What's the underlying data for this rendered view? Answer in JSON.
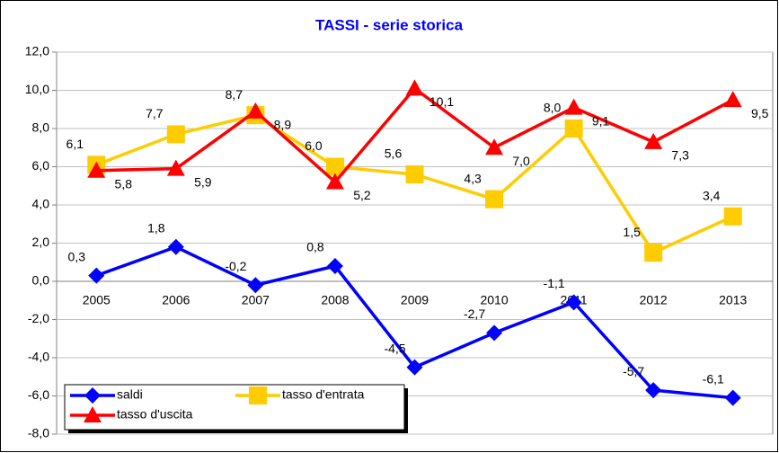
{
  "chart_data": {
    "type": "line",
    "title": "TASSI - serie storica",
    "categories": [
      "2005",
      "2006",
      "2007",
      "2008",
      "2009",
      "2010",
      "2011",
      "2012",
      "2013"
    ],
    "series": [
      {
        "name": "saldi",
        "color": "#0000ff",
        "marker": "diamond",
        "values": [
          0.3,
          1.8,
          -0.2,
          0.8,
          -4.5,
          -2.7,
          -1.1,
          -5.7,
          -6.1
        ],
        "value_labels": [
          "0,3",
          "1,8",
          "-0,2",
          "0,8",
          "-4,5",
          "-2,7",
          "-1,1",
          "-5,7",
          "-6,1"
        ]
      },
      {
        "name": "tasso d'entrata",
        "color": "#ffcc00",
        "marker": "square",
        "values": [
          6.1,
          7.7,
          8.7,
          6.0,
          5.6,
          4.3,
          8.0,
          1.5,
          3.4
        ],
        "value_labels": [
          "6,1",
          "7,7",
          "8,7",
          "6,0",
          "5,6",
          "4,3",
          "8,0",
          "1,5",
          "3,4"
        ]
      },
      {
        "name": "tasso d'uscita",
        "color": "#ff0000",
        "marker": "triangle",
        "values": [
          5.8,
          5.9,
          8.9,
          5.2,
          10.1,
          7.0,
          9.1,
          7.3,
          9.5
        ],
        "value_labels": [
          "5,8",
          "5,9",
          "8,9",
          "5,2",
          "10,1",
          "7,0",
          "9,1",
          "7,3",
          "9,5"
        ]
      }
    ],
    "ylim": [
      -8,
      12
    ],
    "yticks": [
      {
        "value": -8,
        "label": "-8,0"
      },
      {
        "value": -6,
        "label": "-6,0"
      },
      {
        "value": -4,
        "label": "-4,0"
      },
      {
        "value": -2,
        "label": "-2,0"
      },
      {
        "value": 0,
        "label": "0,0"
      },
      {
        "value": 2,
        "label": "2,0"
      },
      {
        "value": 4,
        "label": "4,0"
      },
      {
        "value": 6,
        "label": "6,0"
      },
      {
        "value": 8,
        "label": "8,0"
      },
      {
        "value": 10,
        "label": "10,0"
      },
      {
        "value": 12,
        "label": "12,0"
      }
    ],
    "grid": true,
    "legend": "lower left"
  }
}
